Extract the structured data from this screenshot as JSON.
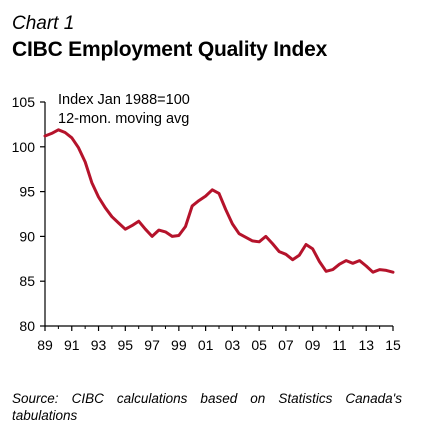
{
  "header": {
    "label": "Chart 1",
    "title": "CIBC Employment Quality Index"
  },
  "chart_data": {
    "type": "line",
    "title": "CIBC Employment Quality Index",
    "annotations": [
      "Index Jan 1988=100",
      "12-mon. moving avg"
    ],
    "xlabel": "",
    "ylabel": "",
    "xlim": [
      1989,
      2015
    ],
    "ylim": [
      80,
      105
    ],
    "x_tick_labels": [
      "89",
      "91",
      "93",
      "95",
      "97",
      "99",
      "01",
      "03",
      "05",
      "07",
      "09",
      "11",
      "13",
      "15"
    ],
    "y_tick_labels": [
      "80",
      "85",
      "90",
      "95",
      "100",
      "105"
    ],
    "x_tick_values": [
      1989,
      1991,
      1993,
      1995,
      1997,
      1999,
      2001,
      2003,
      2005,
      2007,
      2009,
      2011,
      2013,
      2015
    ],
    "y_tick_values": [
      80,
      85,
      90,
      95,
      100,
      105
    ],
    "grid": false,
    "series": [
      {
        "color": "#b5132b",
        "x": [
          1989.0,
          1989.5,
          1990.0,
          1990.5,
          1991.0,
          1991.5,
          1992.0,
          1992.5,
          1993.0,
          1993.5,
          1994.0,
          1994.5,
          1995.0,
          1995.5,
          1996.0,
          1996.5,
          1997.0,
          1997.5,
          1998.0,
          1998.5,
          1999.0,
          1999.5,
          2000.0,
          2000.5,
          2001.0,
          2001.5,
          2002.0,
          2002.5,
          2003.0,
          2003.5,
          2004.0,
          2004.5,
          2005.0,
          2005.5,
          2006.0,
          2006.5,
          2007.0,
          2007.5,
          2008.0,
          2008.5,
          2009.0,
          2009.5,
          2010.0,
          2010.5,
          2011.0,
          2011.5,
          2012.0,
          2012.5,
          2013.0,
          2013.5,
          2014.0,
          2014.5,
          2015.0
        ],
        "values": [
          101.2,
          101.5,
          101.9,
          101.6,
          101.0,
          99.9,
          98.3,
          96.0,
          94.4,
          93.2,
          92.2,
          91.5,
          90.8,
          91.2,
          91.7,
          90.8,
          90.0,
          90.7,
          90.5,
          90.0,
          90.1,
          91.1,
          93.4,
          94.0,
          94.5,
          95.2,
          94.8,
          93.0,
          91.4,
          90.3,
          89.9,
          89.5,
          89.4,
          90.0,
          89.2,
          88.3,
          88.0,
          87.4,
          87.9,
          89.1,
          88.6,
          87.2,
          86.1,
          86.3,
          86.9,
          87.3,
          87.0,
          87.3,
          86.7,
          86.0,
          86.3,
          86.2,
          86.0
        ]
      }
    ]
  },
  "footer": {
    "source": "Source: CIBC calculations based on Statistics Canada's tabulations"
  }
}
